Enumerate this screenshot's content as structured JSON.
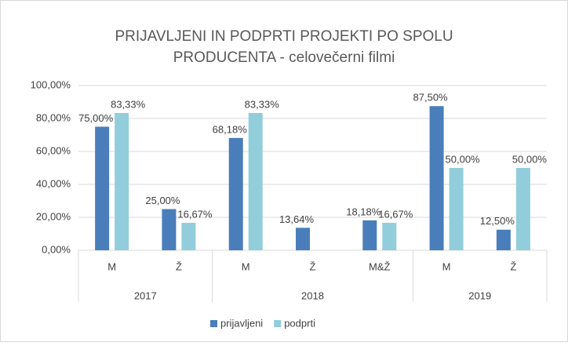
{
  "chart_data": {
    "type": "bar",
    "title": [
      "PRIJAVLJENI IN PODPRTI PROJEKTI PO SPOLU",
      "PRODUCENTA - celovečerni filmi"
    ],
    "groups": [
      {
        "name": "2017",
        "categories": [
          "M",
          "Ž"
        ]
      },
      {
        "name": "2018",
        "categories": [
          "M",
          "Ž",
          "M&Ž"
        ]
      },
      {
        "name": "2019",
        "categories": [
          "M",
          "Ž"
        ]
      }
    ],
    "series": [
      {
        "name": "prijavljeni",
        "color": "#4a7ebb",
        "values": [
          75,
          25,
          68.18,
          13.64,
          18.18,
          87.5,
          12.5
        ],
        "value_labels": [
          "75,00%",
          "25,00%",
          "68,18%",
          "13,64%",
          "18,18%",
          "87,50%",
          "12,50%"
        ]
      },
      {
        "name": "podprti",
        "color": "#92cddc",
        "values": [
          83.33,
          16.67,
          83.33,
          null,
          16.67,
          50,
          50
        ],
        "value_labels": [
          "83,33%",
          "16,67%",
          "83,33%",
          null,
          "16,67%",
          "50,00%",
          "50,00%"
        ]
      }
    ],
    "ylim": [
      0,
      100
    ],
    "yticks": [
      {
        "value": 0,
        "label": "0,00%"
      },
      {
        "value": 20,
        "label": "20,00%"
      },
      {
        "value": 40,
        "label": "40,00%"
      },
      {
        "value": 60,
        "label": "60,00%"
      },
      {
        "value": 80,
        "label": "80,00%"
      },
      {
        "value": 100,
        "label": "100,00%"
      }
    ],
    "grid": true,
    "legend": "bottom"
  }
}
